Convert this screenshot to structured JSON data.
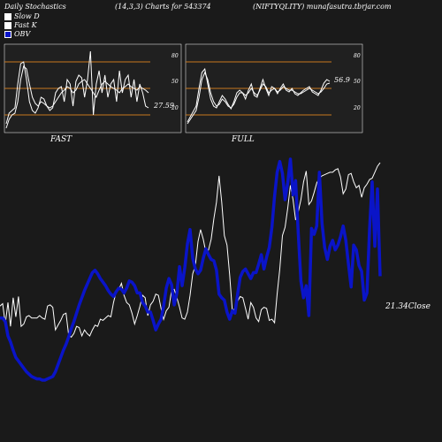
{
  "header": {
    "title": "Daily Stochastics",
    "params": "(14,3,3) Charts for 543374",
    "symbol": "(NIFTYQLITY) munafasutra.tbrjar.com"
  },
  "legend": [
    {
      "label": "Slow  D",
      "color": "#ffffff"
    },
    {
      "label": "Fast  K",
      "color": "#ffffff"
    },
    {
      "label": "OBV",
      "color": "#0a14c8"
    }
  ],
  "colors": {
    "background": "#1a1a1a",
    "panel": "#202020",
    "level_line": "#c8781e",
    "obv": "#0a14c8",
    "price": "#ffffff"
  },
  "chart_data": [
    {
      "type": "line",
      "title": "FAST",
      "ylim": [
        0,
        100
      ],
      "levels": [
        20,
        50,
        80
      ],
      "tick_labels": [
        "80",
        "50",
        "20"
      ],
      "last_value_label": "27.59",
      "series": [
        {
          "name": "Slow  D",
          "values": [
            5,
            15,
            20,
            22,
            35,
            60,
            75,
            72,
            55,
            40,
            33,
            30,
            35,
            33,
            30,
            28,
            30,
            35,
            40,
            45,
            48,
            52,
            50,
            45,
            48,
            55,
            58,
            60,
            55,
            50,
            45,
            40,
            48,
            55,
            58,
            55,
            52,
            50,
            48,
            45,
            50,
            52,
            55,
            52,
            50,
            48,
            52,
            50,
            48,
            45
          ]
        },
        {
          "name": "Fast  K",
          "values": [
            10,
            22,
            25,
            28,
            55,
            78,
            80,
            60,
            35,
            25,
            22,
            28,
            40,
            38,
            30,
            25,
            28,
            45,
            50,
            52,
            35,
            60,
            55,
            30,
            58,
            65,
            62,
            40,
            60,
            92,
            20,
            55,
            70,
            45,
            65,
            40,
            55,
            60,
            35,
            70,
            45,
            60,
            65,
            40,
            60,
            35,
            55,
            45,
            30,
            28
          ]
        }
      ]
    },
    {
      "type": "line",
      "title": "FULL",
      "ylim": [
        0,
        100
      ],
      "levels": [
        20,
        50,
        80
      ],
      "tick_labels": [
        "80",
        "50",
        "20"
      ],
      "last_value_label": "56.9",
      "series": [
        {
          "name": "Slow  D",
          "values": [
            10,
            15,
            20,
            25,
            40,
            60,
            68,
            60,
            45,
            35,
            30,
            32,
            38,
            35,
            30,
            28,
            32,
            40,
            45,
            45,
            42,
            45,
            50,
            45,
            42,
            48,
            55,
            52,
            45,
            48,
            50,
            46,
            48,
            52,
            50,
            48,
            48,
            46,
            44,
            44,
            46,
            48,
            50,
            48,
            46,
            44,
            46,
            50,
            55,
            56
          ]
        },
        {
          "name": "Fast  K",
          "values": [
            12,
            18,
            24,
            30,
            50,
            68,
            72,
            55,
            38,
            30,
            28,
            35,
            42,
            38,
            32,
            27,
            35,
            45,
            48,
            45,
            38,
            48,
            55,
            42,
            40,
            50,
            60,
            50,
            42,
            52,
            50,
            44,
            50,
            55,
            48,
            46,
            50,
            44,
            42,
            45,
            48,
            50,
            52,
            46,
            44,
            42,
            48,
            56,
            60,
            58
          ]
        }
      ]
    },
    {
      "type": "line",
      "title": "",
      "close_label": "21.34Close",
      "series": [
        {
          "name": "Close",
          "values": [
            235,
            237,
            220,
            238,
            218,
            242,
            226,
            243,
            218,
            220,
            226,
            227,
            225,
            225,
            225,
            227,
            225,
            224,
            235,
            236,
            234,
            215,
            219,
            223,
            228,
            229,
            211,
            209,
            212,
            218,
            217,
            210,
            215,
            212,
            210,
            215,
            219,
            218,
            224,
            223,
            225,
            227,
            226,
            238,
            247,
            249,
            254,
            244,
            238,
            236,
            229,
            220,
            227,
            235,
            244,
            242,
            227,
            236,
            239,
            245,
            244,
            233,
            224,
            231,
            234,
            248,
            249,
            242,
            234,
            225,
            224,
            230,
            244,
            262,
            269,
            289,
            299,
            291,
            280,
            282,
            291,
            308,
            322,
            344,
            322,
            294,
            286,
            261,
            231,
            233,
            239,
            243,
            242,
            233,
            224,
            238,
            234,
            225,
            222,
            232,
            234,
            233,
            223,
            224,
            221,
            245,
            266,
            294,
            301,
            317,
            336,
            324,
            307,
            314,
            324,
            339,
            348,
            320,
            323,
            330,
            338,
            342,
            344,
            345,
            346,
            347,
            347,
            349,
            350,
            343,
            329,
            333,
            345,
            346,
            339,
            334,
            336,
            326,
            334,
            337,
            341,
            342,
            347,
            352,
            355
          ]
        },
        {
          "name": "OBV",
          "values": [
            225,
            225,
            222,
            210,
            205,
            198,
            192,
            189,
            186,
            183,
            180,
            178,
            176,
            175,
            174,
            174,
            173,
            173,
            174,
            175,
            176,
            180,
            186,
            192,
            198,
            203,
            209,
            216,
            222,
            229,
            236,
            242,
            248,
            253,
            258,
            263,
            265,
            262,
            258,
            255,
            252,
            248,
            245,
            243,
            247,
            250,
            249,
            246,
            250,
            256,
            255,
            252,
            246,
            246,
            238,
            235,
            230,
            230,
            223,
            215,
            220,
            224,
            235,
            250,
            258,
            253,
            236,
            246,
            268,
            252,
            267,
            287,
            299,
            275,
            266,
            262,
            265,
            275,
            283,
            278,
            274,
            273,
            265,
            245,
            242,
            240,
            230,
            224,
            231,
            229,
            245,
            259,
            264,
            266,
            262,
            258,
            263,
            263,
            270,
            278,
            266,
            276,
            284,
            301,
            327,
            347,
            356,
            346,
            324,
            338,
            358,
            328,
            340,
            296,
            256,
            242,
            252,
            227,
            300,
            295,
            302,
            347,
            304,
            284,
            274,
            285,
            290,
            282,
            286,
            293,
            302,
            290,
            270,
            251,
            286,
            282,
            269,
            264,
            240,
            246,
            300,
            339,
            285,
            333,
            260
          ]
        }
      ]
    }
  ]
}
